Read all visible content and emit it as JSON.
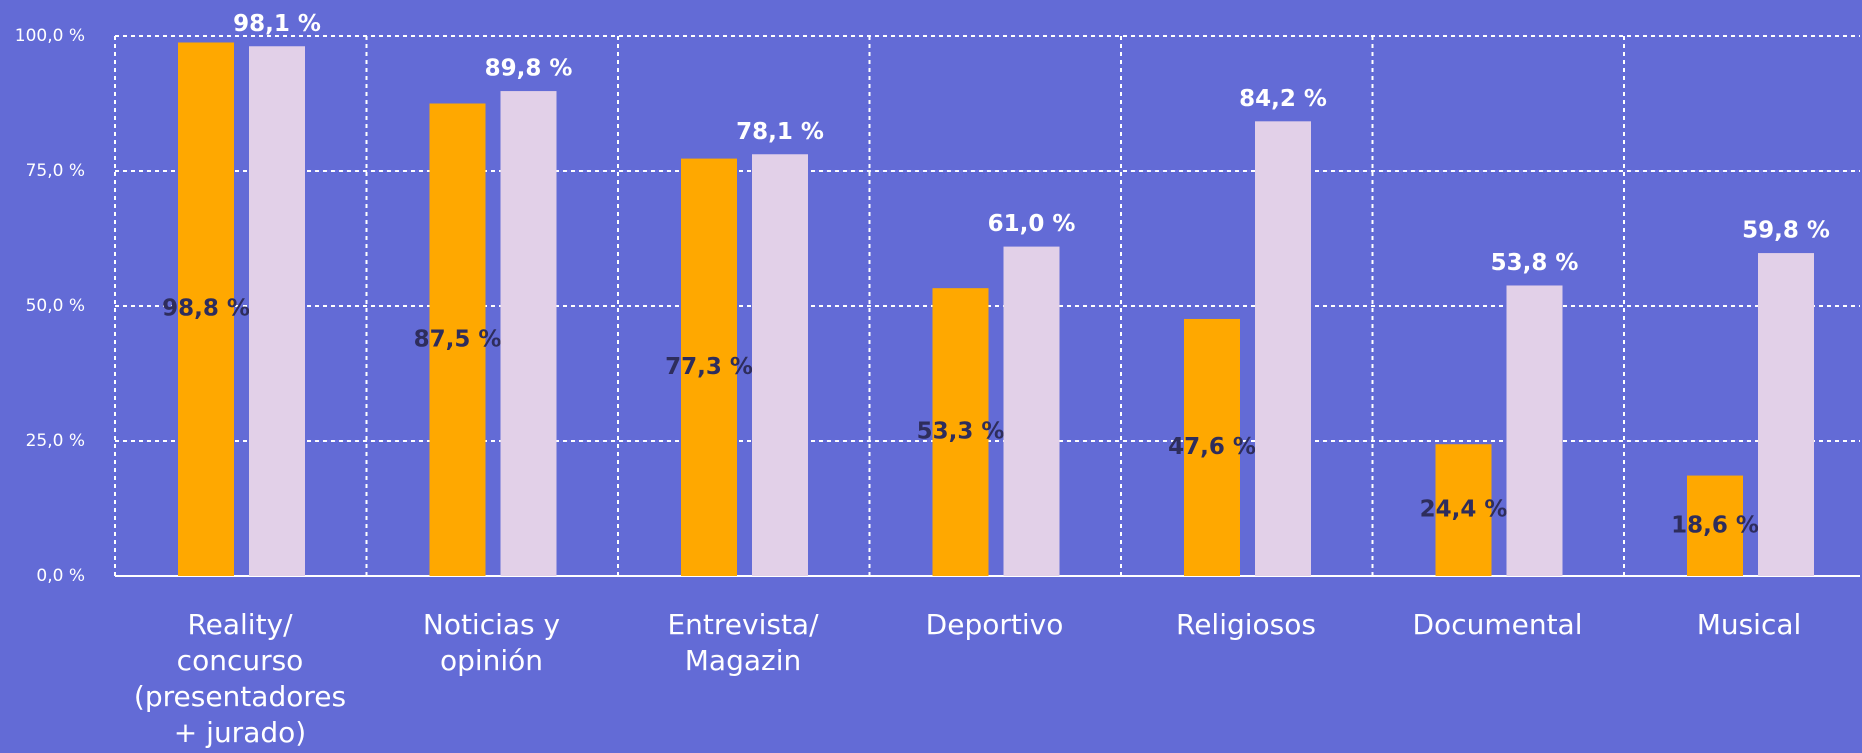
{
  "chart_data": {
    "type": "bar",
    "categories": [
      "Reality/\nconcurso\n(presentadores\n+ jurado)",
      "Noticias y\nopinión",
      "Entrevista/\nMagazin",
      "Deportivo",
      "Religiosos",
      "Documental",
      "Musical"
    ],
    "series": [
      {
        "color": "#ffa800",
        "values": [
          98.8,
          87.5,
          77.3,
          53.3,
          47.6,
          24.4,
          18.6
        ],
        "value_labels": [
          "98,8 %",
          "87,5 %",
          "77,3 %",
          "53,3 %",
          "47,6 %",
          "24,4 %",
          "18,6 %"
        ]
      },
      {
        "color": "#e2d0e8",
        "values": [
          98.1,
          89.8,
          78.1,
          61.0,
          84.2,
          53.8,
          59.8
        ],
        "value_labels": [
          "98,1 %",
          "89,8 %",
          "78,1 %",
          "61,0 %",
          "84,2 %",
          "53,8 %",
          "59,8 %"
        ]
      }
    ],
    "ylim": [
      0,
      100
    ],
    "yticks": [
      {
        "value": 0,
        "label": "0,0 %"
      },
      {
        "value": 25,
        "label": "25,0 %"
      },
      {
        "value": 50,
        "label": "50,0 %"
      },
      {
        "value": 75,
        "label": "75,0 %"
      },
      {
        "value": 100,
        "label": "100,0 %"
      }
    ],
    "grid": true
  }
}
